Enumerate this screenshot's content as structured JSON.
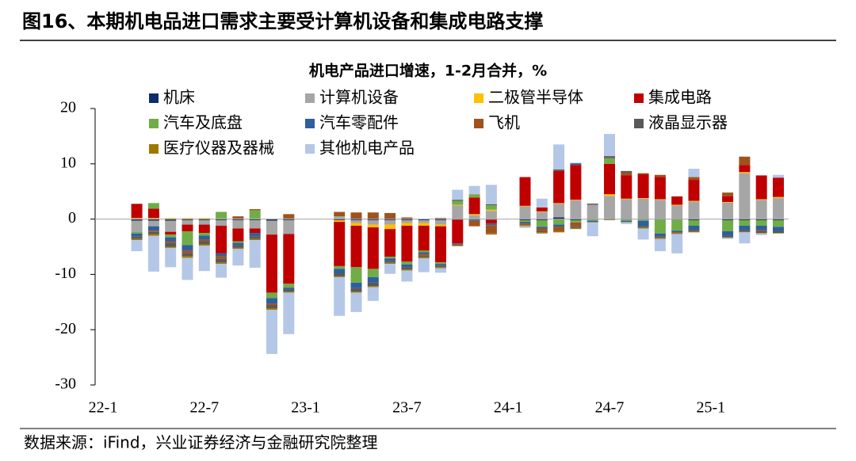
{
  "header_title": "图16、本期机电品进口需求主要受计算机设备和集成电路支撑",
  "source": "数据来源：iFind，兴业证券经济与金融研究院整理",
  "chart_data": {
    "type": "stacked_bar",
    "title": "机电产品进口增速，1-2月合并，%",
    "legend": "top",
    "categories": [
      "22-1",
      null,
      null,
      null,
      null,
      null,
      "22-7",
      null,
      null,
      null,
      null,
      null,
      "23-1",
      null,
      null,
      null,
      null,
      null,
      "23-7",
      null,
      null,
      null,
      null,
      null,
      "24-1",
      null,
      null,
      null,
      null,
      null,
      "24-7",
      null,
      null,
      null,
      null,
      null,
      "25-1",
      null,
      null,
      null,
      null
    ],
    "ylim": [
      -30,
      20
    ],
    "yticks": [
      -30,
      -20,
      -10,
      0,
      10,
      20
    ],
    "series": [
      {
        "name": "机床",
        "color": "#0d2c6c",
        "values": [
          null,
          null,
          -0.3,
          -0.3,
          -0.3,
          -0.2,
          -0.2,
          -0.2,
          -0.2,
          -0.2,
          -0.3,
          -0.2,
          null,
          null,
          -0.2,
          -0.2,
          -0.2,
          -0.2,
          -0.2,
          -0.2,
          -0.2,
          -0.1,
          0,
          -0.1,
          null,
          -0.2,
          -0.2,
          0.3,
          -0.2,
          0,
          -0.1,
          -0.1,
          -0.1,
          -0.1,
          -0.1,
          -0.2,
          null,
          -0.2,
          -0.2,
          -0.2,
          -0.2
        ]
      },
      {
        "name": "计算机设备",
        "color": "#a6a6a6",
        "values": [
          null,
          null,
          -2,
          -1,
          -2,
          -0.8,
          -0.8,
          -1,
          -1.5,
          -1.5,
          -2.5,
          -2.5,
          null,
          null,
          0.5,
          -0.5,
          -0.8,
          -0.8,
          -0.5,
          -0.5,
          -0.8,
          2.5,
          0.7,
          1.5,
          null,
          2.3,
          1.3,
          2.5,
          3.4,
          2.6,
          4.2,
          3.6,
          3.7,
          3.5,
          2.5,
          3.2,
          null,
          3,
          8.3,
          3.5,
          3.8
        ]
      },
      {
        "name": "二极管半导体",
        "color": "#ffc000",
        "values": [
          null,
          null,
          0.2,
          0.2,
          0.2,
          0.2,
          0.2,
          0.1,
          0.1,
          0.1,
          0.1,
          0.1,
          null,
          null,
          -0.3,
          -0.5,
          -0.5,
          -0.8,
          -0.5,
          -0.5,
          -0.3,
          0.1,
          0.2,
          0.2,
          null,
          0.1,
          0.1,
          0.1,
          0.1,
          0,
          0.3,
          0.1,
          0.1,
          0.1,
          0.1,
          0.1,
          null,
          0.1,
          0.2,
          0.1,
          0.2
        ]
      },
      {
        "name": "集成电路",
        "color": "#c00000",
        "values": [
          null,
          null,
          2.5,
          1.7,
          -0.5,
          -1.2,
          -1.5,
          -5,
          -2.3,
          -0.8,
          -10.5,
          -9,
          null,
          null,
          -8,
          -7.5,
          -7.5,
          -5,
          -6.5,
          -4.5,
          -6.5,
          -4.3,
          3,
          -0.7,
          null,
          5.2,
          0.7,
          5.8,
          6.3,
          0,
          5.5,
          4.2,
          4.3,
          4,
          1.5,
          3.8,
          null,
          1,
          1.3,
          4.3,
          3.5
        ]
      },
      {
        "name": "汽车及底盘",
        "color": "#70ad47",
        "values": [
          null,
          null,
          -0.3,
          1,
          -0.5,
          -2.5,
          -0.5,
          1.2,
          -0.3,
          1.5,
          -1,
          -0.7,
          null,
          null,
          -0.5,
          -2.8,
          -1.5,
          -0.3,
          -0.5,
          -0.3,
          -0.3,
          0.7,
          0.5,
          0.8,
          null,
          -0.3,
          -1.2,
          -1,
          -0.4,
          -0.3,
          1,
          -0.2,
          -0.2,
          -2.5,
          -2,
          -1,
          null,
          -2,
          -1,
          -1,
          -1.2
        ]
      },
      {
        "name": "汽车零配件",
        "color": "#2e5f9e",
        "values": [
          null,
          null,
          -0.5,
          -0.8,
          -0.7,
          -1,
          -0.7,
          -0.5,
          -0.4,
          -0.6,
          -1,
          -0.4,
          null,
          null,
          -0.8,
          -1,
          -1,
          -0.5,
          -0.5,
          -0.3,
          -0.3,
          -0.2,
          -0.3,
          -0.3,
          null,
          -0.3,
          -0.3,
          -0.4,
          0.3,
          -0.2,
          0.2,
          -0.2,
          -1,
          -0.5,
          -0.3,
          -0.8,
          null,
          -0.8,
          -0.8,
          -0.8,
          -0.8
        ]
      },
      {
        "name": "飞机",
        "color": "#a0521d",
        "values": [
          null,
          null,
          0.1,
          -0.2,
          -0.3,
          -0.5,
          -0.3,
          -0.5,
          0.4,
          0.2,
          -0.3,
          0.8,
          null,
          null,
          0.8,
          1.2,
          1.2,
          1.1,
          0.3,
          -0.3,
          0.2,
          -0.2,
          -1,
          -1.5,
          null,
          -0.3,
          -0.5,
          -0.8,
          -0.7,
          -0.1,
          0.2,
          0.5,
          0.2,
          0.4,
          -0.2,
          0.5,
          null,
          0.7,
          1.5,
          -0.2,
          0
        ]
      },
      {
        "name": "液晶显示器",
        "color": "#595959",
        "values": [
          null,
          null,
          -0.5,
          -0.4,
          -0.7,
          -0.5,
          -0.6,
          -0.7,
          -0.5,
          -0.5,
          -0.5,
          -0.3,
          null,
          null,
          -0.5,
          -0.6,
          -0.6,
          -0.3,
          -0.4,
          -0.3,
          -0.3,
          0.2,
          0,
          0.2,
          null,
          0,
          -0.2,
          0.3,
          -0.3,
          0.2,
          0,
          0.3,
          -0.2,
          -0.3,
          0,
          -0.2,
          null,
          -0.3,
          -0.3,
          -0.3,
          -0.3
        ]
      },
      {
        "name": "医疗仪器及器械",
        "color": "#a07800",
        "values": [
          null,
          null,
          -0.2,
          -0.3,
          -0.2,
          -0.3,
          -0.2,
          -0.2,
          -0.2,
          -0.2,
          -0.3,
          -0.2,
          null,
          null,
          -0.2,
          -0.2,
          -0.2,
          -0.2,
          -0.2,
          -0.2,
          -0.2,
          -0.1,
          0.1,
          -0.2,
          null,
          -0.2,
          -0.2,
          -0.2,
          -0.2,
          0,
          -0.1,
          -0.1,
          -0.2,
          -0.2,
          -0.1,
          -0.2,
          null,
          -0.1,
          -0.1,
          -0.1,
          -0.1
        ]
      },
      {
        "name": "其他机电产品",
        "color": "#b4c7e7",
        "values": [
          null,
          null,
          -2,
          -6.5,
          -3.5,
          -4,
          -4.6,
          -2.5,
          -3,
          -5,
          -8,
          -7.5,
          null,
          null,
          -7,
          -3.5,
          -2.5,
          -1.8,
          -2,
          -2.5,
          -0.8,
          1.8,
          1.5,
          3.5,
          null,
          -0.3,
          1.6,
          4.5,
          0.1,
          -2.5,
          4,
          -0.3,
          -2,
          -2.2,
          -3.5,
          1.5,
          null,
          -0.2,
          -2,
          -0.3,
          0.5
        ]
      }
    ]
  }
}
